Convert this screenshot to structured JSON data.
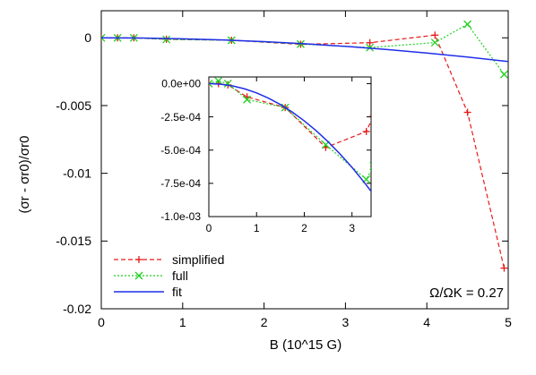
{
  "chart_data": [
    {
      "type": "line",
      "ylabel": "(σr - σr0)/σr0",
      "xlabel": "B (10^15 G)",
      "xlim": [
        0,
        5
      ],
      "ylim": [
        -0.02,
        0.002
      ],
      "xticks": [
        {
          "value": 0,
          "label": "0"
        },
        {
          "value": 1,
          "label": "1"
        },
        {
          "value": 2,
          "label": "2"
        },
        {
          "value": 3,
          "label": "3"
        },
        {
          "value": 4,
          "label": "4"
        },
        {
          "value": 5,
          "label": "5"
        }
      ],
      "yticks": [
        {
          "value": 0,
          "label": "0"
        },
        {
          "value": -0.005,
          "label": "-0.005"
        },
        {
          "value": -0.01,
          "label": "-0.01"
        },
        {
          "value": -0.015,
          "label": "-0.015"
        },
        {
          "value": -0.02,
          "label": "-0.02"
        }
      ],
      "annotation": "Ω/ΩK = 0.27",
      "legend_position": "bottom-left",
      "series": [
        {
          "name": "simplified",
          "color": "#e8191a",
          "style": "dashed",
          "marker": "plus",
          "x": [
            0,
            0.2,
            0.4,
            0.8,
            1.6,
            2.45,
            3.3,
            4.1,
            4.5,
            4.95
          ],
          "y": [
            0,
            0,
            0,
            -0.0001,
            -0.00018,
            -0.00048,
            -0.00036,
            0.0002,
            -0.0055,
            -0.017
          ]
        },
        {
          "name": "full",
          "color": "#1fcf1f",
          "style": "dotted",
          "marker": "cross",
          "x": [
            0,
            0.2,
            0.4,
            0.8,
            1.6,
            2.45,
            3.3,
            4.1,
            4.5,
            4.95
          ],
          "y": [
            0,
            0,
            0,
            -0.00012,
            -0.00018,
            -0.00046,
            -0.00072,
            -0.00035,
            0.001,
            -0.0027
          ]
        },
        {
          "name": "fit",
          "color": "#1f2ee8",
          "style": "solid",
          "marker": "none",
          "function": "-0.00007*B^2",
          "x": [
            0,
            0.5,
            1,
            1.5,
            2,
            2.5,
            3,
            3.5,
            4,
            4.5,
            5
          ],
          "y": [
            0,
            -1.75e-05,
            -7e-05,
            -0.0001575,
            -0.00028,
            -0.0004375,
            -0.00063,
            -0.0008575,
            -0.00112,
            -0.0014175,
            -0.00175
          ]
        }
      ]
    },
    {
      "type": "line",
      "xlim": [
        0,
        3.4
      ],
      "ylim": [
        -0.001,
        5e-05
      ],
      "xticks": [
        {
          "value": 0,
          "label": "0"
        },
        {
          "value": 1,
          "label": "1"
        },
        {
          "value": 2,
          "label": "2"
        },
        {
          "value": 3,
          "label": "3"
        }
      ],
      "yticks": [
        {
          "value": 0,
          "label": "0.0e+00"
        },
        {
          "value": -0.00025,
          "label": "-2.5e-04"
        },
        {
          "value": -0.0005,
          "label": "-5.0e-04"
        },
        {
          "value": -0.00075,
          "label": "-7.5e-04"
        },
        {
          "value": -0.001,
          "label": "-1.0e-03"
        }
      ],
      "series": [
        {
          "name": "simplified",
          "color": "#e8191a",
          "style": "dashed",
          "marker": "plus",
          "x": [
            0,
            0.2,
            0.4,
            0.8,
            1.6,
            2.45,
            3.3,
            3.45
          ],
          "y": [
            0,
            0,
            -1e-05,
            -0.0001,
            -0.00018,
            -0.00048,
            -0.00036,
            -0.00024
          ]
        },
        {
          "name": "full",
          "color": "#1fcf1f",
          "style": "dotted",
          "marker": "cross",
          "x": [
            0,
            0.2,
            0.4,
            0.8,
            1.6,
            2.45,
            3.3,
            3.45
          ],
          "y": [
            0,
            2e-05,
            0,
            -0.00012,
            -0.00018,
            -0.00046,
            -0.00072,
            -0.00062
          ]
        },
        {
          "name": "fit",
          "color": "#1f2ee8",
          "style": "solid",
          "marker": "none",
          "x": [
            0,
            0.25,
            0.5,
            0.75,
            1,
            1.25,
            1.5,
            1.75,
            2,
            2.25,
            2.5,
            2.75,
            3,
            3.25,
            3.45
          ],
          "y": [
            0,
            -4.4e-06,
            -1.75e-05,
            -3.94e-05,
            -7e-05,
            -0.0001094,
            -0.0001575,
            -0.0002144,
            -0.00028,
            -0.0003544,
            -0.0004375,
            -0.0005294,
            -0.00063,
            -0.0007394,
            -0.0008332
          ]
        }
      ]
    }
  ]
}
